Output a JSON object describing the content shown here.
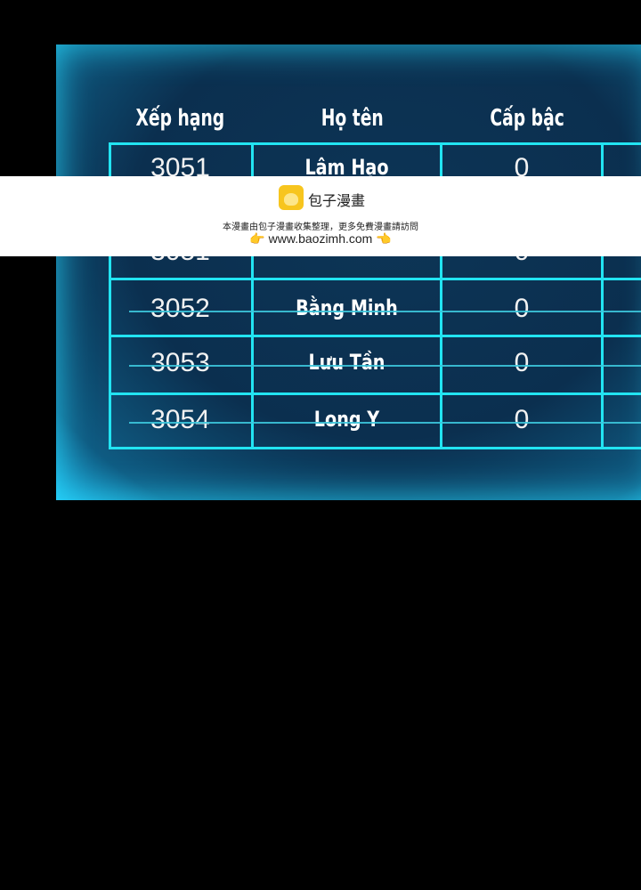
{
  "table": {
    "headers": [
      "Xếp hạng",
      "Họ tên",
      "Cấp bậc"
    ],
    "rows": [
      {
        "rank": "3051",
        "name": "Lâm Hạo",
        "level": "0",
        "struck": false
      },
      {
        "rank": "3051",
        "name": "",
        "level": "0",
        "struck": false
      },
      {
        "rank": "3052",
        "name": "Bằng Minh",
        "level": "0",
        "struck": true
      },
      {
        "rank": "3053",
        "name": "Lưu Tần",
        "level": "0",
        "struck": true
      },
      {
        "rank": "3054",
        "name": "Long Y",
        "level": "0",
        "struck": true
      }
    ]
  },
  "watermark": {
    "brand": "包子漫畫",
    "note": "本漫畫由包子漫畫收集整理，更多免費漫畫請訪問",
    "url": "www.baozimh.com",
    "left_icon": "pointing-right-hand-icon",
    "right_icon": "pointing-left-hand-icon"
  },
  "colors": {
    "grid": "#22e4f2",
    "panel": "#0b2f4f",
    "background": "#000000"
  }
}
